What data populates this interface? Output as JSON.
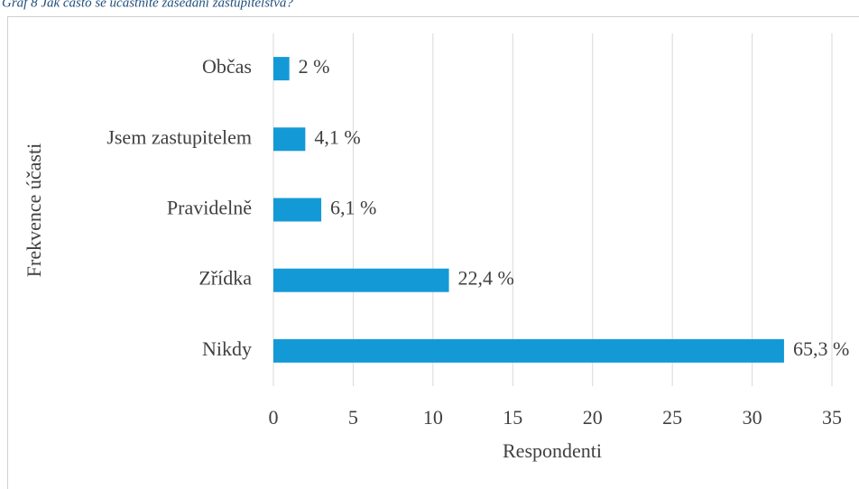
{
  "chart_data": {
    "type": "bar",
    "orientation": "horizontal",
    "title": "Graf 8 Jak často se účastníte zasedání zastupitelstva?",
    "categories": [
      "Občas",
      "Jsem zastupitelem",
      "Pravidelně",
      "Zřídka",
      "Nikdy"
    ],
    "values": [
      1,
      2,
      3,
      11,
      32
    ],
    "value_labels": [
      "2 %",
      "4,1 %",
      "6,1 %",
      "22,4 %",
      "65,3 %"
    ],
    "color": "#139ad6",
    "xlabel": "Respondenti",
    "ylabel": "Frekvence účasti",
    "xlim": [
      0,
      35
    ],
    "xticks": [
      0,
      5,
      10,
      15,
      20,
      25,
      30,
      35
    ],
    "grid": true
  }
}
